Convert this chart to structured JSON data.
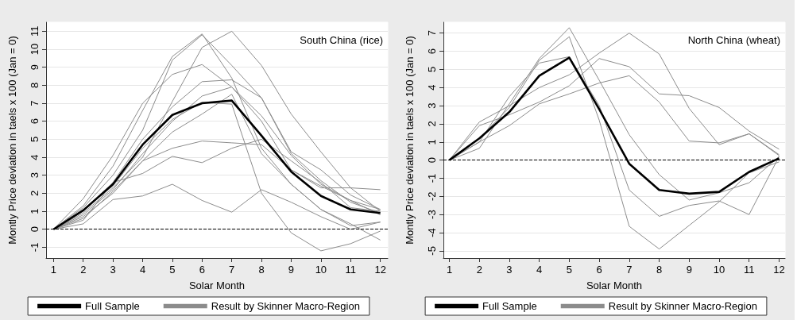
{
  "chart_data": [
    {
      "type": "line",
      "x": [
        1,
        2,
        3,
        4,
        5,
        6,
        7,
        8,
        9,
        10,
        11,
        12
      ],
      "xlabel": "Solar Month",
      "ylabel": "Montly Price deviation in taels x 100 (Jan = 0)",
      "annotations": [
        "South China (rice)"
      ],
      "xlim": [
        0.75,
        12.25
      ],
      "xticks": [
        1,
        2,
        3,
        4,
        5,
        6,
        7,
        8,
        9,
        10,
        11,
        12
      ],
      "ylim": [
        -1.6,
        11.5
      ],
      "yticks": [
        -1,
        0,
        1,
        2,
        3,
        4,
        5,
        6,
        7,
        8,
        9,
        10,
        11
      ],
      "grid": "y",
      "legend": "bottom",
      "marker": "none",
      "ref_lines": [
        {
          "axis": "y",
          "value": 0,
          "label": null,
          "color": "#000000",
          "line_style": "dashed"
        }
      ],
      "series": [
        {
          "name": "Full Sample",
          "color": "#000000",
          "values": [
            0,
            1.05,
            2.5,
            4.7,
            6.35,
            7.0,
            7.15,
            5.2,
            3.2,
            1.85,
            1.1,
            0.9
          ]
        },
        {
          "name": "Result by Skinner Macro-Region",
          "color": "#8c8c8c",
          "values": [
            0,
            1.7,
            4.1,
            7.0,
            8.6,
            9.15,
            7.9,
            6.3,
            4.1,
            2.5,
            1.6,
            1.1
          ]
        },
        {
          "color": "#8c8c8c",
          "values": [
            0,
            1.3,
            3.5,
            6.6,
            9.6,
            10.85,
            8.4,
            4.5,
            2.5,
            1.1,
            0.2,
            0.4
          ]
        },
        {
          "color": "#8c8c8c",
          "values": [
            0,
            1.2,
            3.0,
            5.5,
            9.4,
            10.8,
            9.1,
            7.3,
            4.2,
            2.7,
            1.5,
            0.9
          ]
        },
        {
          "color": "#8c8c8c",
          "values": [
            0,
            0.9,
            2.3,
            4.0,
            7.1,
            10.1,
            11.0,
            9.1,
            6.4,
            4.3,
            2.3,
            1.0
          ]
        },
        {
          "color": "#8c8c8c",
          "values": [
            0,
            1.0,
            2.6,
            5.0,
            6.8,
            8.2,
            8.3,
            7.3,
            4.3,
            3.3,
            1.9,
            1.1
          ]
        },
        {
          "color": "#8c8c8c",
          "values": [
            0,
            0.8,
            2.2,
            4.2,
            6.0,
            7.4,
            7.9,
            6.0,
            3.3,
            2.3,
            2.3,
            2.2
          ]
        },
        {
          "color": "#8c8c8c",
          "values": [
            0,
            0.7,
            2.0,
            3.8,
            5.4,
            6.4,
            7.5,
            4.2,
            2.5,
            1.1,
            0.3,
            -0.6
          ]
        },
        {
          "color": "#8c8c8c",
          "values": [
            0,
            0.6,
            2.1,
            3.8,
            4.5,
            4.9,
            4.8,
            4.7,
            3.3,
            2.4,
            1.6,
            0.8
          ]
        },
        {
          "color": "#8c8c8c",
          "values": [
            0,
            0.5,
            2.6,
            3.1,
            4.05,
            3.7,
            4.5,
            5.0,
            3.8,
            2.6,
            1.2,
            1.0
          ]
        },
        {
          "color": "#8c8c8c",
          "values": [
            0,
            0.3,
            1.65,
            1.85,
            2.5,
            1.6,
            0.95,
            2.2,
            1.5,
            0.7,
            0.0,
            0.4
          ]
        },
        {
          "color": "#8c8c8c",
          "values": [
            0,
            1.1,
            2.4,
            4.5,
            6.1,
            7.05,
            6.95,
            2.0,
            -0.2,
            -1.2,
            -0.8,
            -0.1
          ]
        }
      ]
    },
    {
      "type": "line",
      "x": [
        1,
        2,
        3,
        4,
        5,
        6,
        7,
        8,
        9,
        10,
        11,
        12
      ],
      "xlabel": "Solar Month",
      "ylabel": "Montly Price deviation in taels x 100 (Jan = 0)",
      "annotations": [
        "North China (wheat)"
      ],
      "xlim": [
        0.8,
        12.2
      ],
      "xticks": [
        1,
        2,
        3,
        4,
        5,
        6,
        7,
        8,
        9,
        10,
        11,
        12
      ],
      "ylim": [
        -5.4,
        7.6
      ],
      "yticks": [
        -5,
        -4,
        -3,
        -2,
        -1,
        0,
        1,
        2,
        3,
        4,
        5,
        6,
        7
      ],
      "grid": "y",
      "legend": "bottom",
      "marker": "none",
      "ref_lines": [
        {
          "axis": "y",
          "value": 0,
          "label": null,
          "color": "#000000",
          "line_style": "dashed"
        }
      ],
      "series": [
        {
          "name": "Full Sample",
          "color": "#000000",
          "values": [
            0,
            1.2,
            2.65,
            4.65,
            5.65,
            2.8,
            -0.2,
            -1.65,
            -1.85,
            -1.75,
            -0.65,
            0.1
          ]
        },
        {
          "name": "Result by Skinner Macro-Region",
          "color": "#8c8c8c",
          "values": [
            0,
            2.1,
            3.0,
            4.0,
            4.7,
            5.9,
            7.0,
            5.85,
            2.85,
            0.85,
            1.45,
            0.3
          ]
        },
        {
          "color": "#8c8c8c",
          "values": [
            0,
            0.65,
            3.1,
            5.6,
            7.3,
            4.4,
            1.4,
            -0.8,
            -2.2,
            -1.8,
            -1.25,
            0.2
          ]
        },
        {
          "color": "#8c8c8c",
          "values": [
            0,
            1.0,
            3.5,
            5.35,
            5.7,
            3.0,
            -1.65,
            -3.1,
            -2.5,
            -2.25,
            -3.0,
            0.2
          ]
        },
        {
          "color": "#8c8c8c",
          "values": [
            0,
            1.2,
            2.9,
            5.5,
            6.8,
            2.2,
            -3.65,
            -4.9,
            -3.6,
            -2.3,
            -0.7,
            -0.1
          ]
        },
        {
          "color": "#8c8c8c",
          "values": [
            0,
            1.0,
            1.9,
            3.1,
            3.65,
            4.25,
            4.65,
            3.2,
            1.05,
            0.95,
            1.45,
            0.25
          ]
        },
        {
          "color": "#8c8c8c",
          "values": [
            0,
            1.9,
            2.5,
            3.2,
            4.1,
            5.6,
            5.15,
            3.65,
            3.55,
            2.9,
            1.6,
            0.6
          ]
        }
      ]
    }
  ]
}
